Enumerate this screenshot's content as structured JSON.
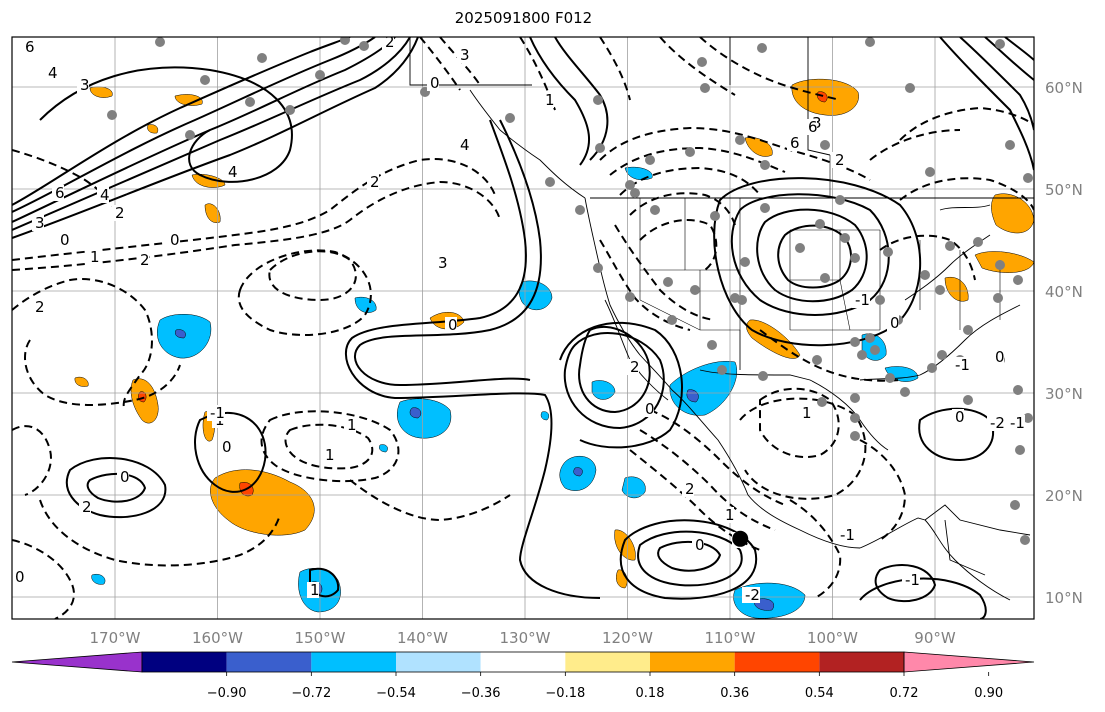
{
  "title": "2025091800 F012",
  "lat_labels": [
    "60°N",
    "50°N",
    "40°N",
    "30°N",
    "20°N",
    "10°N"
  ],
  "lon_labels": [
    "170°W",
    "160°W",
    "150°W",
    "140°W",
    "130°W",
    "120°W",
    "110°W",
    "100°W",
    "90°W"
  ],
  "colorbar": {
    "colors": [
      "#9932cc",
      "#000080",
      "#3a5fcd",
      "#00bfff",
      "#b0e2ff",
      "#ffffff",
      "#ffec8b",
      "#ffa500",
      "#ff4500",
      "#b22222",
      "#ff88aa"
    ],
    "tick_labels": [
      "−0.90",
      "−0.72",
      "−0.54",
      "−0.36",
      "−0.18",
      "0.18",
      "0.36",
      "0.54",
      "0.72",
      "0.90"
    ]
  },
  "contour_labels": [
    "6",
    "4",
    "3",
    "6",
    "4",
    "2",
    "3",
    "0",
    "1",
    "2",
    "0",
    "4",
    "2",
    "3",
    "2",
    "1",
    "1",
    "2",
    "0",
    "1",
    "0",
    "-1",
    "0",
    "1",
    "0",
    "2",
    "0",
    "2",
    "1",
    "0",
    "4",
    "6",
    "3",
    "2",
    "-1",
    "0",
    "-1",
    "0",
    "-2",
    "1",
    "-1",
    "0",
    "1",
    "3",
    "4",
    "2",
    "6",
    "0",
    "-1",
    "-2",
    "-1"
  ],
  "map": {
    "lon_range": [
      -180,
      -80
    ],
    "lat_range": [
      8,
      65
    ],
    "marker": {
      "lon": -109,
      "lat": 16
    }
  }
}
